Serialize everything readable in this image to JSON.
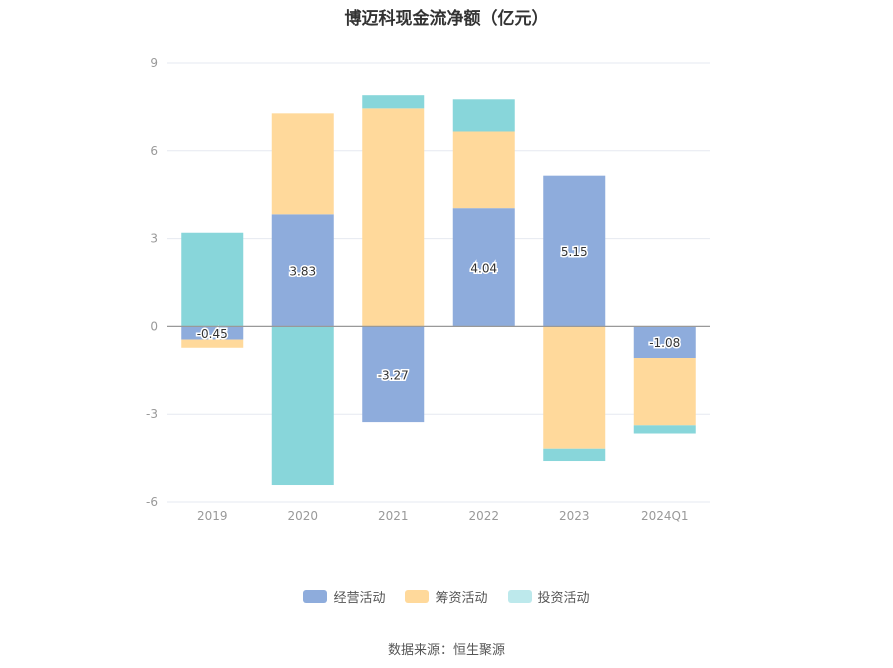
{
  "chart_data": {
    "type": "bar",
    "stacked": true,
    "title": "博迈科现金流净额（亿元）",
    "categories": [
      "2019",
      "2020",
      "2021",
      "2022",
      "2023",
      "2024Q1"
    ],
    "series": [
      {
        "name": "经营活动",
        "color": "#8eacdc",
        "values": [
          -0.45,
          3.83,
          -3.27,
          4.04,
          5.15,
          -1.08
        ]
      },
      {
        "name": "筹资活动",
        "color": "#ffd99b",
        "values": [
          -0.28,
          3.45,
          7.45,
          2.62,
          -4.18,
          -2.3
        ]
      },
      {
        "name": "投资活动",
        "color": "#88d6da",
        "values": [
          3.2,
          -5.42,
          0.45,
          1.1,
          -0.42,
          -0.28
        ]
      }
    ],
    "data_labels": [
      "-0.45",
      "3.83",
      "-3.27",
      "4.04",
      "5.15",
      "-1.08"
    ],
    "yticks": [
      9,
      6,
      3,
      0,
      -3,
      -6
    ],
    "ylim": [
      -6,
      9
    ],
    "grid": true,
    "legend_position": "bottom"
  },
  "legend": {
    "operating": "经营活动",
    "financing": "筹资活动",
    "investing": "投资活动",
    "investing_swatch_color": "#bde9ec"
  },
  "source": "数据来源：恒生聚源"
}
